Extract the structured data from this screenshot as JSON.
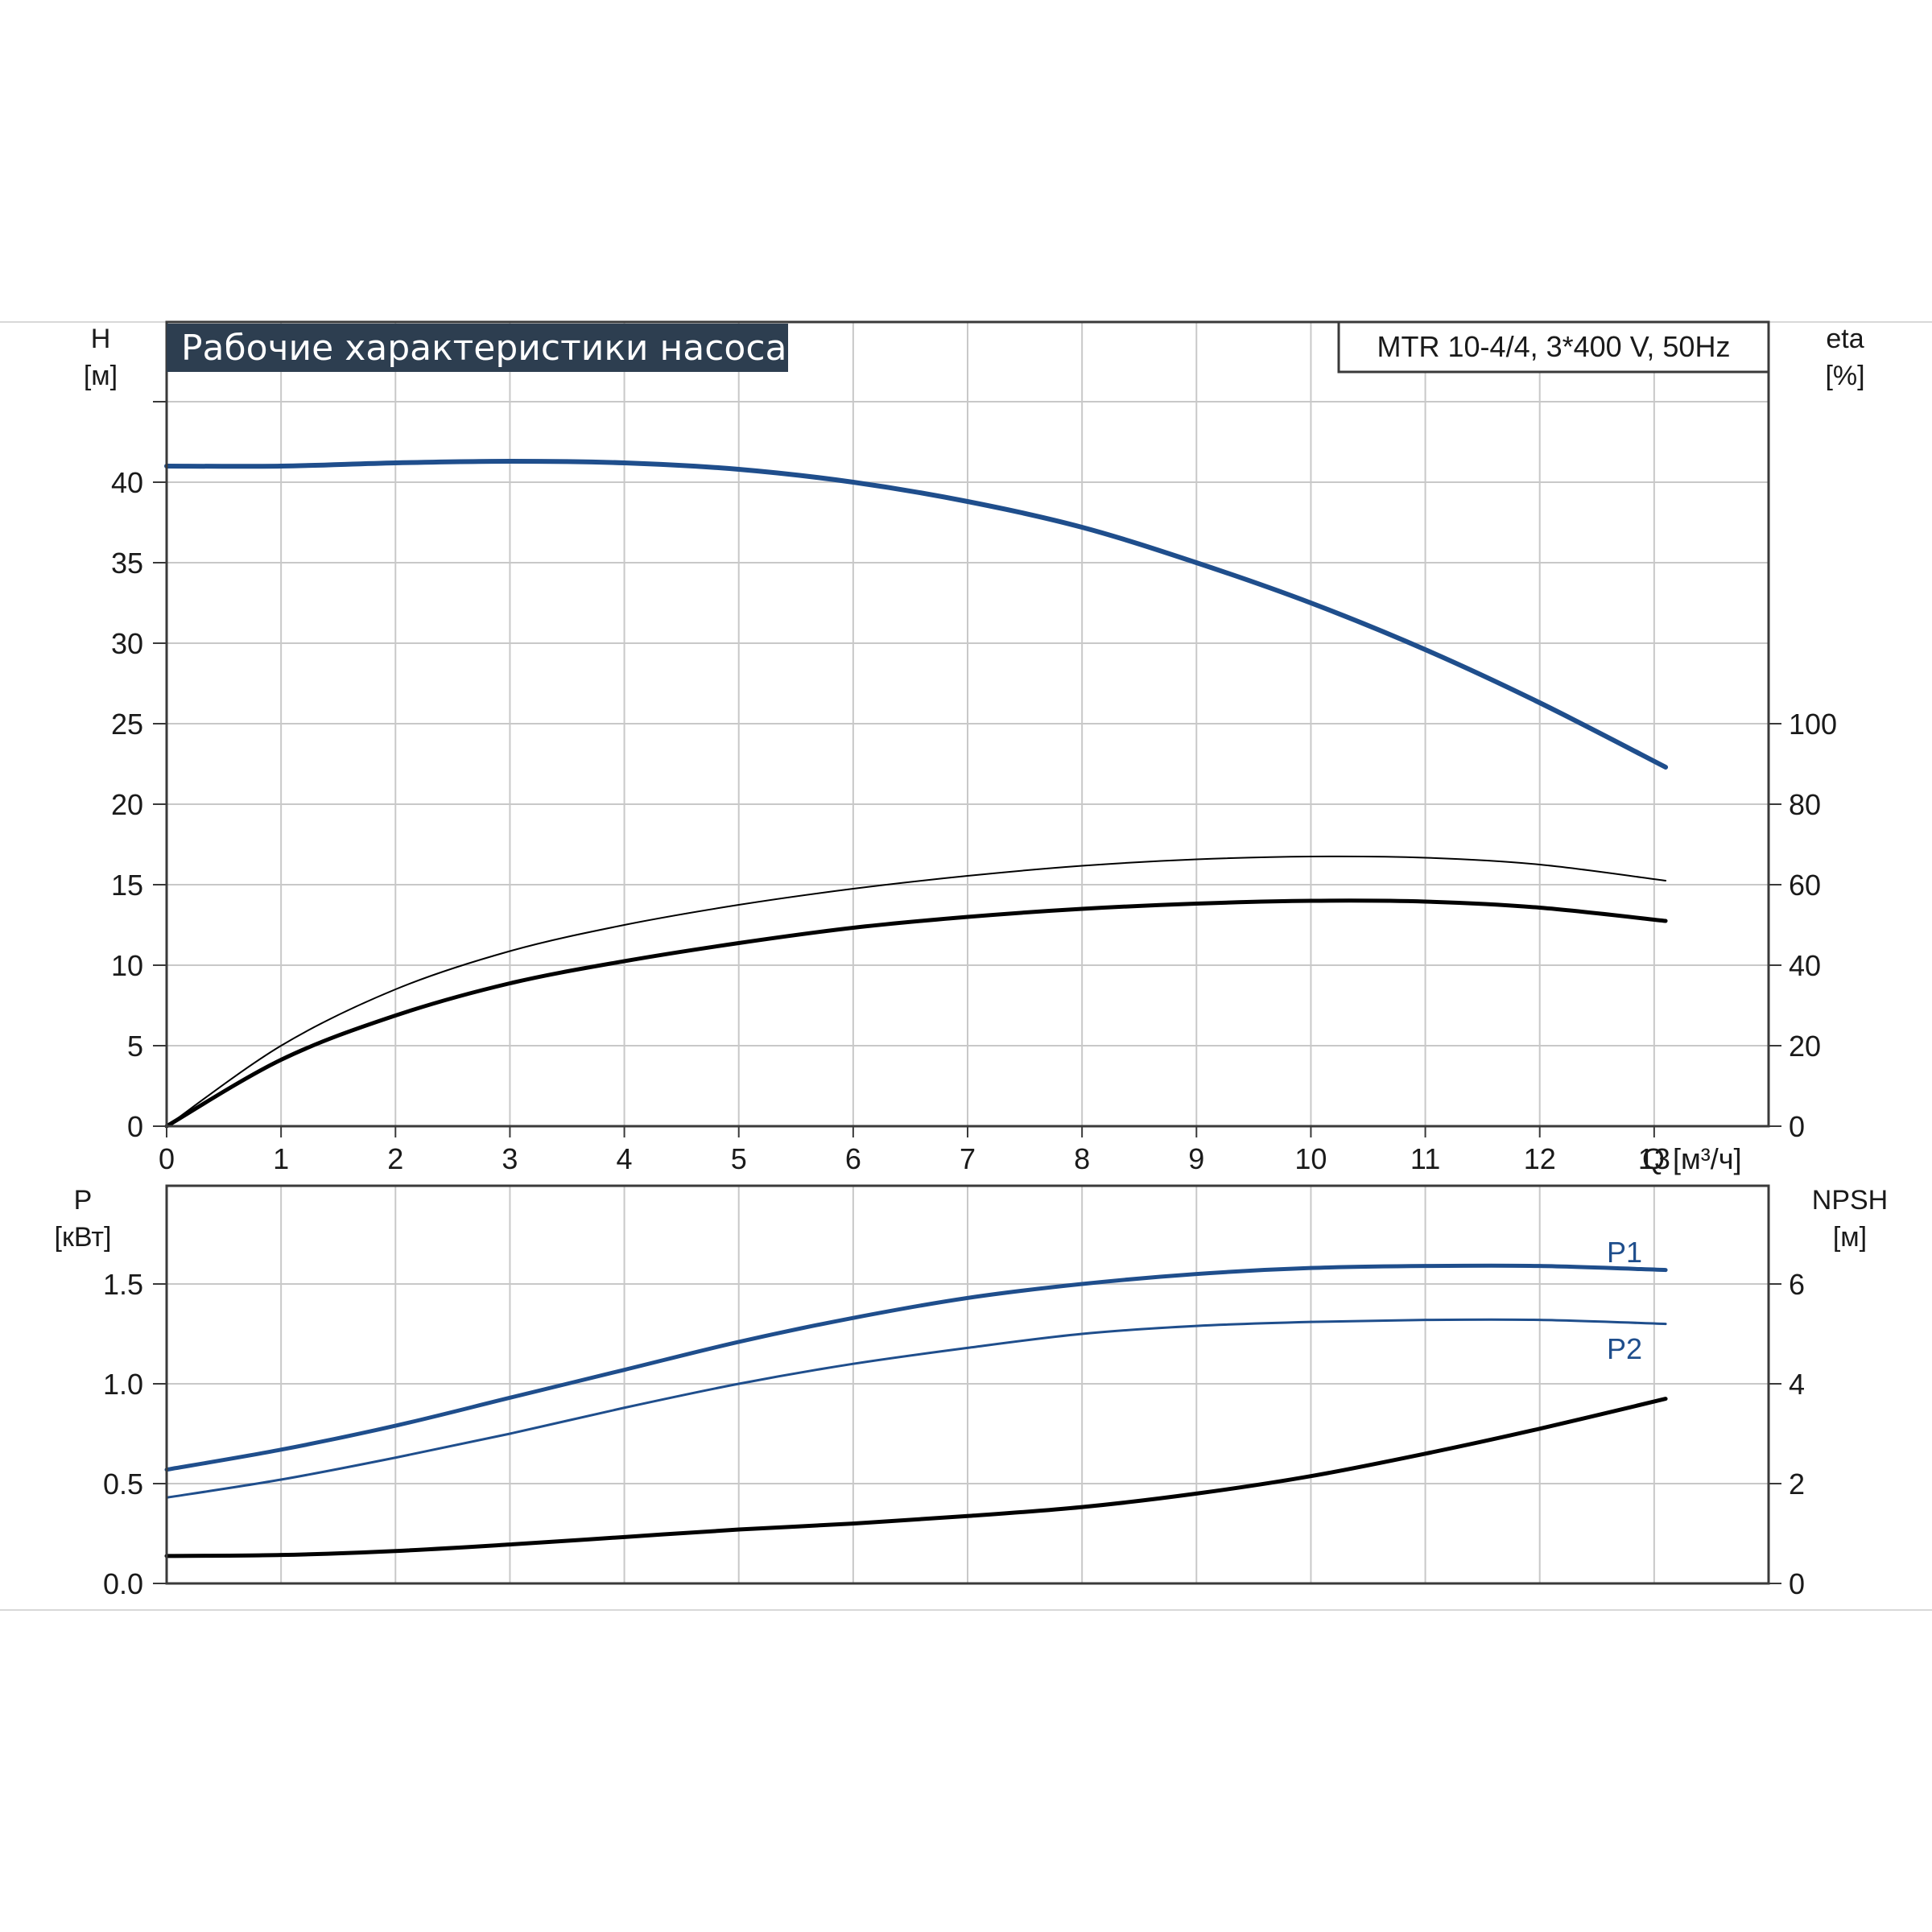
{
  "title": "Рабочие характеристики насоса",
  "model": "MTR 10-4/4, 3*400 V, 50Hz",
  "colors": {
    "title_bg": "#2d3e50",
    "blue": "#1f4e8c",
    "black": "#000000",
    "grid": "#c8c8c8"
  },
  "chart_data": [
    {
      "type": "line",
      "name_key": "head_efficiency",
      "x_axis": {
        "label": "Q [м³/ч]",
        "range": [
          0,
          14
        ],
        "ticks": [
          "0",
          "1",
          "2",
          "3",
          "4",
          "5",
          "6",
          "7",
          "8",
          "9",
          "10",
          "11",
          "12",
          "13"
        ]
      },
      "y_left": {
        "label_line1": "H",
        "label_line2": "[м]",
        "range": [
          0,
          45
        ],
        "ticks": [
          "0",
          "5",
          "10",
          "15",
          "20",
          "25",
          "30",
          "35",
          "40"
        ]
      },
      "y_right": {
        "label_line1": "eta",
        "label_line2": "[%]",
        "range": [
          0,
          100
        ],
        "ticks": [
          "0",
          "20",
          "40",
          "60",
          "80",
          "100"
        ]
      },
      "grid": true,
      "series": [
        {
          "axis": "left",
          "color": "#1f4e8c",
          "x": [
            0,
            1,
            2,
            3,
            4,
            5,
            6,
            7,
            8,
            9,
            10,
            11,
            12,
            13.1
          ],
          "y": [
            41.0,
            41.0,
            41.2,
            41.3,
            41.2,
            40.8,
            40.0,
            38.8,
            37.2,
            35.0,
            32.5,
            29.6,
            26.3,
            22.3
          ]
        },
        {
          "axis": "right",
          "color": "#000000",
          "x": [
            0,
            1,
            2,
            3,
            4,
            5,
            6,
            7,
            8,
            9,
            10,
            11,
            12,
            13.1
          ],
          "y": [
            0,
            20,
            34,
            43.5,
            50,
            55,
            59,
            62.2,
            64.7,
            66.3,
            67.0,
            66.7,
            65.0,
            61.0
          ]
        },
        {
          "axis": "right",
          "color": "#000000",
          "x": [
            0,
            1,
            2,
            3,
            4,
            5,
            6,
            7,
            8,
            9,
            10,
            11,
            12,
            13.1
          ],
          "y": [
            0,
            16.5,
            27.5,
            35.5,
            41,
            45.5,
            49.3,
            52,
            54,
            55.3,
            56.0,
            55.8,
            54.3,
            51.0
          ]
        }
      ]
    },
    {
      "type": "line",
      "name_key": "power_npsh",
      "x_axis": {
        "range": [
          0,
          14
        ]
      },
      "y_left": {
        "label_line1": "P",
        "label_line2": "[кВт]",
        "range": [
          0,
          2.0
        ],
        "ticks": [
          "0.0",
          "0.5",
          "1.0",
          "1.5"
        ]
      },
      "y_right": {
        "label_line1": "NPSH",
        "label_line2": "[м]",
        "range": [
          0,
          8
        ],
        "ticks": [
          "0",
          "2",
          "4",
          "6"
        ]
      },
      "grid": true,
      "series": [
        {
          "name": "P1",
          "axis": "left",
          "color": "#1f4e8c",
          "x": [
            0,
            1,
            2,
            3,
            4,
            5,
            6,
            7,
            8,
            9,
            10,
            11,
            12,
            13.1
          ],
          "y": [
            0.57,
            0.67,
            0.79,
            0.93,
            1.07,
            1.21,
            1.33,
            1.43,
            1.5,
            1.55,
            1.58,
            1.59,
            1.59,
            1.57
          ]
        },
        {
          "name": "P2",
          "axis": "left",
          "color": "#1f4e8c",
          "x": [
            0,
            1,
            2,
            3,
            4,
            5,
            6,
            7,
            8,
            9,
            10,
            11,
            12,
            13.1
          ],
          "y": [
            0.43,
            0.52,
            0.63,
            0.75,
            0.88,
            1.0,
            1.1,
            1.18,
            1.25,
            1.29,
            1.31,
            1.32,
            1.32,
            1.3
          ]
        },
        {
          "axis": "right",
          "color": "#000000",
          "x": [
            0,
            1,
            2,
            3,
            4,
            5,
            6,
            7,
            8,
            9,
            10,
            11,
            12,
            13.1
          ],
          "y": [
            0.55,
            0.57,
            0.65,
            0.78,
            0.93,
            1.08,
            1.2,
            1.35,
            1.53,
            1.8,
            2.15,
            2.6,
            3.1,
            3.7
          ]
        }
      ]
    }
  ]
}
